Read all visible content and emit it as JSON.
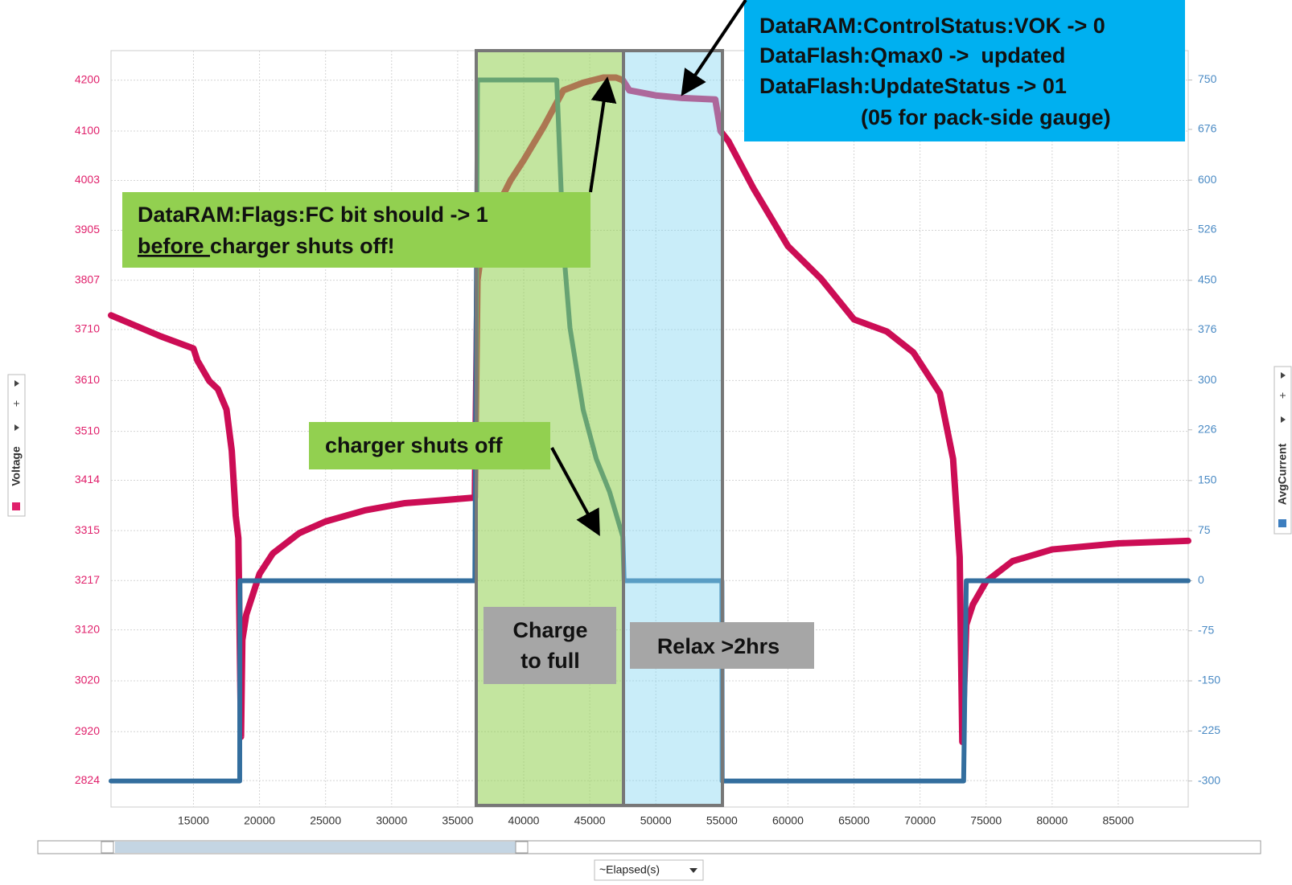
{
  "chart_data": {
    "type": "line",
    "x_label": "~Elapsed(s)",
    "y_label": "Voltage",
    "y2_label": "AvgCurrent",
    "xlim": [
      8760,
      90300
    ],
    "xticks": [
      15000,
      20000,
      25000,
      30000,
      35000,
      40000,
      45000,
      50000,
      55000,
      60000,
      65000,
      70000,
      75000,
      80000,
      85000
    ],
    "ylim": [
      2772,
      4258
    ],
    "yticks": [
      2824,
      2920,
      3020,
      3120,
      3217,
      3315,
      3414,
      3510,
      3610,
      3710,
      3807,
      3905,
      4003,
      4100,
      4200
    ],
    "y2lim": [
      -339,
      794
    ],
    "y2ticks": [
      -300,
      -225,
      -150,
      -75,
      0,
      75,
      150,
      226,
      300,
      376,
      450,
      526,
      600,
      676,
      750
    ],
    "grid": true,
    "series": [
      {
        "name": "Voltage",
        "color": "#cc0d55",
        "x": [
          8760,
          12500,
          15000,
          15300,
          16200,
          16850,
          17500,
          17900,
          18200,
          18400,
          18600,
          18700,
          19000,
          20000,
          21000,
          23000,
          25000,
          28000,
          31000,
          34000,
          36300,
          36500,
          37000,
          39000,
          40000,
          41500,
          43000,
          44500,
          46000,
          47000,
          47500,
          48000,
          50000,
          52000,
          54500,
          54900,
          55500,
          57400,
          60000,
          62500,
          65000,
          67500,
          69500,
          71500,
          72500,
          73000,
          73200,
          73500,
          74000,
          75000,
          77000,
          80000,
          85000,
          90300
        ],
        "values": [
          3738,
          3697,
          3673,
          3649,
          3609,
          3593,
          3553,
          3472,
          3344,
          3300,
          2910,
          3100,
          3150,
          3230,
          3270,
          3310,
          3333,
          3355,
          3369,
          3375,
          3380,
          3807,
          3900,
          4003,
          4043,
          4108,
          4180,
          4195,
          4205,
          4205,
          4200,
          4180,
          4170,
          4165,
          4162,
          4100,
          4080,
          3987,
          3874,
          3810,
          3730,
          3706,
          3665,
          3585,
          3456,
          3263,
          2900,
          3130,
          3170,
          3215,
          3255,
          3278,
          3290,
          3295
        ]
      },
      {
        "name": "AvgCurrent",
        "color": "#336e9e",
        "axis": "y2",
        "x": [
          8760,
          18500,
          18520,
          36300,
          36500,
          42500,
          43000,
          43500,
          44500,
          45500,
          46500,
          47500,
          47600,
          55000,
          55020,
          73300,
          73500,
          90300
        ],
        "values": [
          -300,
          -300,
          0,
          0,
          750,
          750,
          501,
          379,
          256,
          182,
          133,
          66,
          0,
          0,
          -300,
          -300,
          0,
          0
        ]
      }
    ],
    "annotations": [
      {
        "lines": [
          "DataRAM:ControlStatus:VOK -> 0",
          "DataFlash:Qmax0 ->  updated",
          "DataFlash:UpdateStatus -> 01",
          "(05 for pack-side gauge)"
        ]
      },
      {
        "lines": [
          "DataRAM:Flags:FC bit should -> 1"
        ],
        "underlined": "before ",
        "rest": "charger shuts off!"
      },
      {
        "lines": [
          "charger shuts off"
        ]
      },
      {
        "lines": [
          "Charge",
          "to full"
        ]
      },
      {
        "lines": [
          "Relax >2hrs"
        ]
      }
    ]
  }
}
